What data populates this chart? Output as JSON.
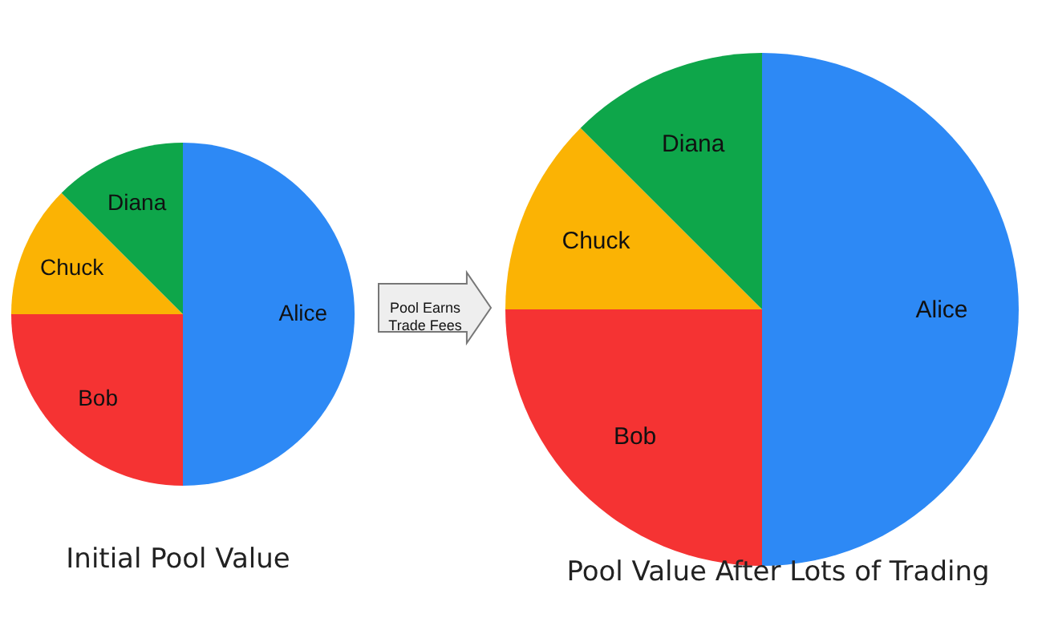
{
  "chart_data": [
    {
      "type": "pie",
      "title": "Initial Pool Value",
      "categories": [
        "Alice",
        "Bob",
        "Chuck",
        "Diana"
      ],
      "values": [
        50,
        25,
        12.5,
        12.5
      ],
      "colors": [
        "#2d89f5",
        "#f53333",
        "#fbb304",
        "#0ea64a"
      ],
      "annotations": [
        "Pool Earns\nTrade Fees"
      ]
    },
    {
      "type": "pie",
      "title": "Pool Value After Lots of Trading",
      "categories": [
        "Alice",
        "Bob",
        "Chuck",
        "Diana"
      ],
      "values": [
        50,
        25,
        12.5,
        12.5
      ],
      "colors": [
        "#2d89f5",
        "#f53333",
        "#fbb304",
        "#0ea64a"
      ]
    }
  ]
}
